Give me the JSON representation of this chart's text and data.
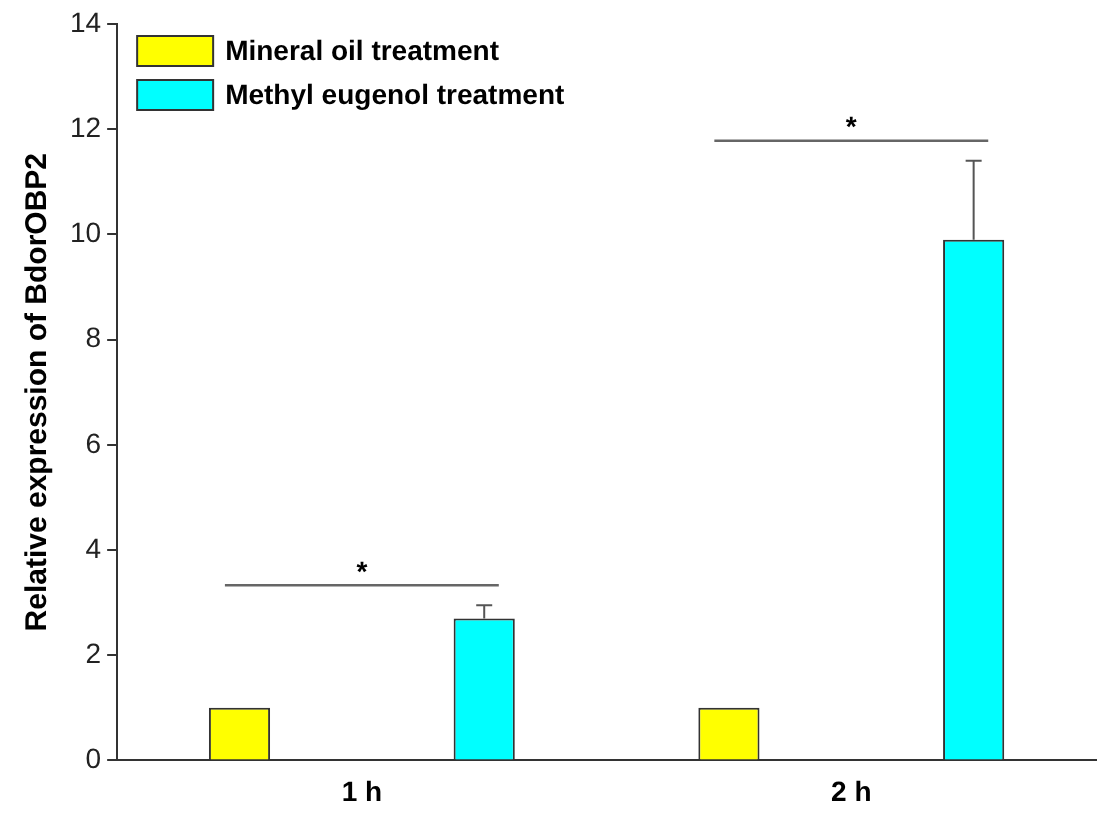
{
  "chart_data": {
    "type": "bar",
    "ylabel": "Relative expression of BdorOBP2",
    "categories": [
      "1 h",
      "2 h"
    ],
    "series": [
      {
        "name": "Mineral oil treatment",
        "color": "#ffff00",
        "values": [
          1.0,
          1.0
        ]
      },
      {
        "name": "Methyl eugenol treatment",
        "color": "#00ffff",
        "values": [
          2.7,
          9.9
        ],
        "errors": [
          [
            2.7,
            2.95
          ],
          [
            9.9,
            11.4
          ]
        ]
      }
    ],
    "annotations": [
      "*",
      "*"
    ],
    "ylim": [
      0,
      14
    ],
    "yticks": [
      0,
      2,
      4,
      6,
      8,
      10,
      12,
      14
    ],
    "grid": false,
    "legend": "top left"
  }
}
